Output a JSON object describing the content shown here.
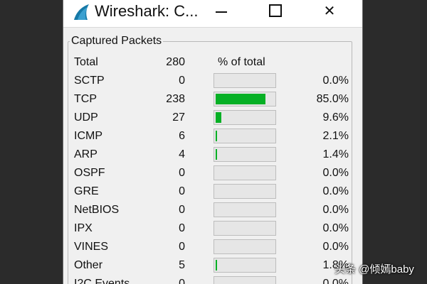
{
  "window": {
    "title": "Wireshark: C...",
    "icon": "wireshark-fin-icon",
    "min_glyph": "",
    "max_glyph": "",
    "close_glyph": "✕"
  },
  "captured": {
    "group_title": "Captured Packets",
    "headers": {
      "total_label": "Total",
      "total_count": "280",
      "pct_header": "% of total"
    },
    "bar_fill_color": "#06b025",
    "rows": [
      {
        "name": "SCTP",
        "count": "0",
        "pct": "0.0%",
        "fraction": 0.0
      },
      {
        "name": "TCP",
        "count": "238",
        "pct": "85.0%",
        "fraction": 0.85
      },
      {
        "name": "UDP",
        "count": "27",
        "pct": "9.6%",
        "fraction": 0.096
      },
      {
        "name": "ICMP",
        "count": "6",
        "pct": "2.1%",
        "fraction": 0.021
      },
      {
        "name": "ARP",
        "count": "4",
        "pct": "1.4%",
        "fraction": 0.014
      },
      {
        "name": "OSPF",
        "count": "0",
        "pct": "0.0%",
        "fraction": 0.0
      },
      {
        "name": "GRE",
        "count": "0",
        "pct": "0.0%",
        "fraction": 0.0
      },
      {
        "name": "NetBIOS",
        "count": "0",
        "pct": "0.0%",
        "fraction": 0.0
      },
      {
        "name": "IPX",
        "count": "0",
        "pct": "0.0%",
        "fraction": 0.0
      },
      {
        "name": "VINES",
        "count": "0",
        "pct": "0.0%",
        "fraction": 0.0
      },
      {
        "name": "Other",
        "count": "5",
        "pct": "1.8%",
        "fraction": 0.018
      },
      {
        "name": "I2C Events",
        "count": "0",
        "pct": "0.0%",
        "fraction": 0.0
      }
    ]
  },
  "watermark": "头条 @倾嫣baby"
}
